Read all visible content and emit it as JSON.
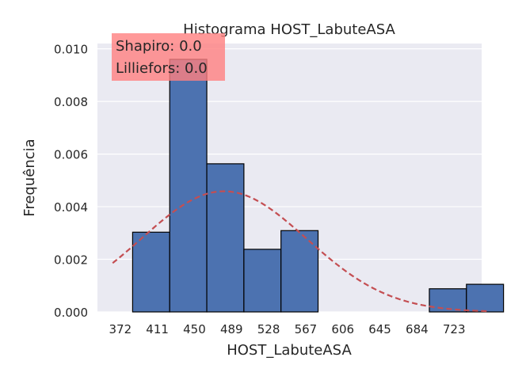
{
  "chart_data": {
    "type": "bar",
    "title": "Histograma HOST_LabuteASA",
    "xlabel": "HOST_LabuteASA",
    "ylabel": "Frequência",
    "xlim": [
      348,
      752
    ],
    "ylim": [
      0,
      0.0102
    ],
    "x_ticks": [
      372,
      411,
      450,
      489,
      528,
      567,
      606,
      645,
      684,
      723
    ],
    "y_ticks": [
      "0.000",
      "0.002",
      "0.004",
      "0.006",
      "0.008",
      "0.010"
    ],
    "bins": [
      {
        "start": 385,
        "end": 424,
        "value": 0.00303
      },
      {
        "start": 424,
        "end": 463,
        "value": 0.0096
      },
      {
        "start": 463,
        "end": 502,
        "value": 0.00563
      },
      {
        "start": 502,
        "end": 541,
        "value": 0.00238
      },
      {
        "start": 541,
        "end": 580,
        "value": 0.00309
      },
      {
        "start": 580,
        "end": 619,
        "value": 0
      },
      {
        "start": 619,
        "end": 658,
        "value": 0
      },
      {
        "start": 658,
        "end": 697,
        "value": 0
      },
      {
        "start": 697,
        "end": 736,
        "value": 0.00088
      },
      {
        "start": 736,
        "end": 775,
        "value": 0.00105
      }
    ],
    "normal_fit": {
      "mean": 481,
      "std": 87,
      "x_range": [
        364,
        758
      ]
    },
    "annotation": {
      "lines": [
        "Shapiro: 0.0",
        "Lilliefors: 0.0"
      ],
      "color": "#ff7f7f"
    },
    "grid": true,
    "colors": {
      "bar": "#4c72b0",
      "bar_edge": "#000000",
      "fit_line": "#c44e52",
      "plot_bg": "#eaeaf2"
    }
  }
}
